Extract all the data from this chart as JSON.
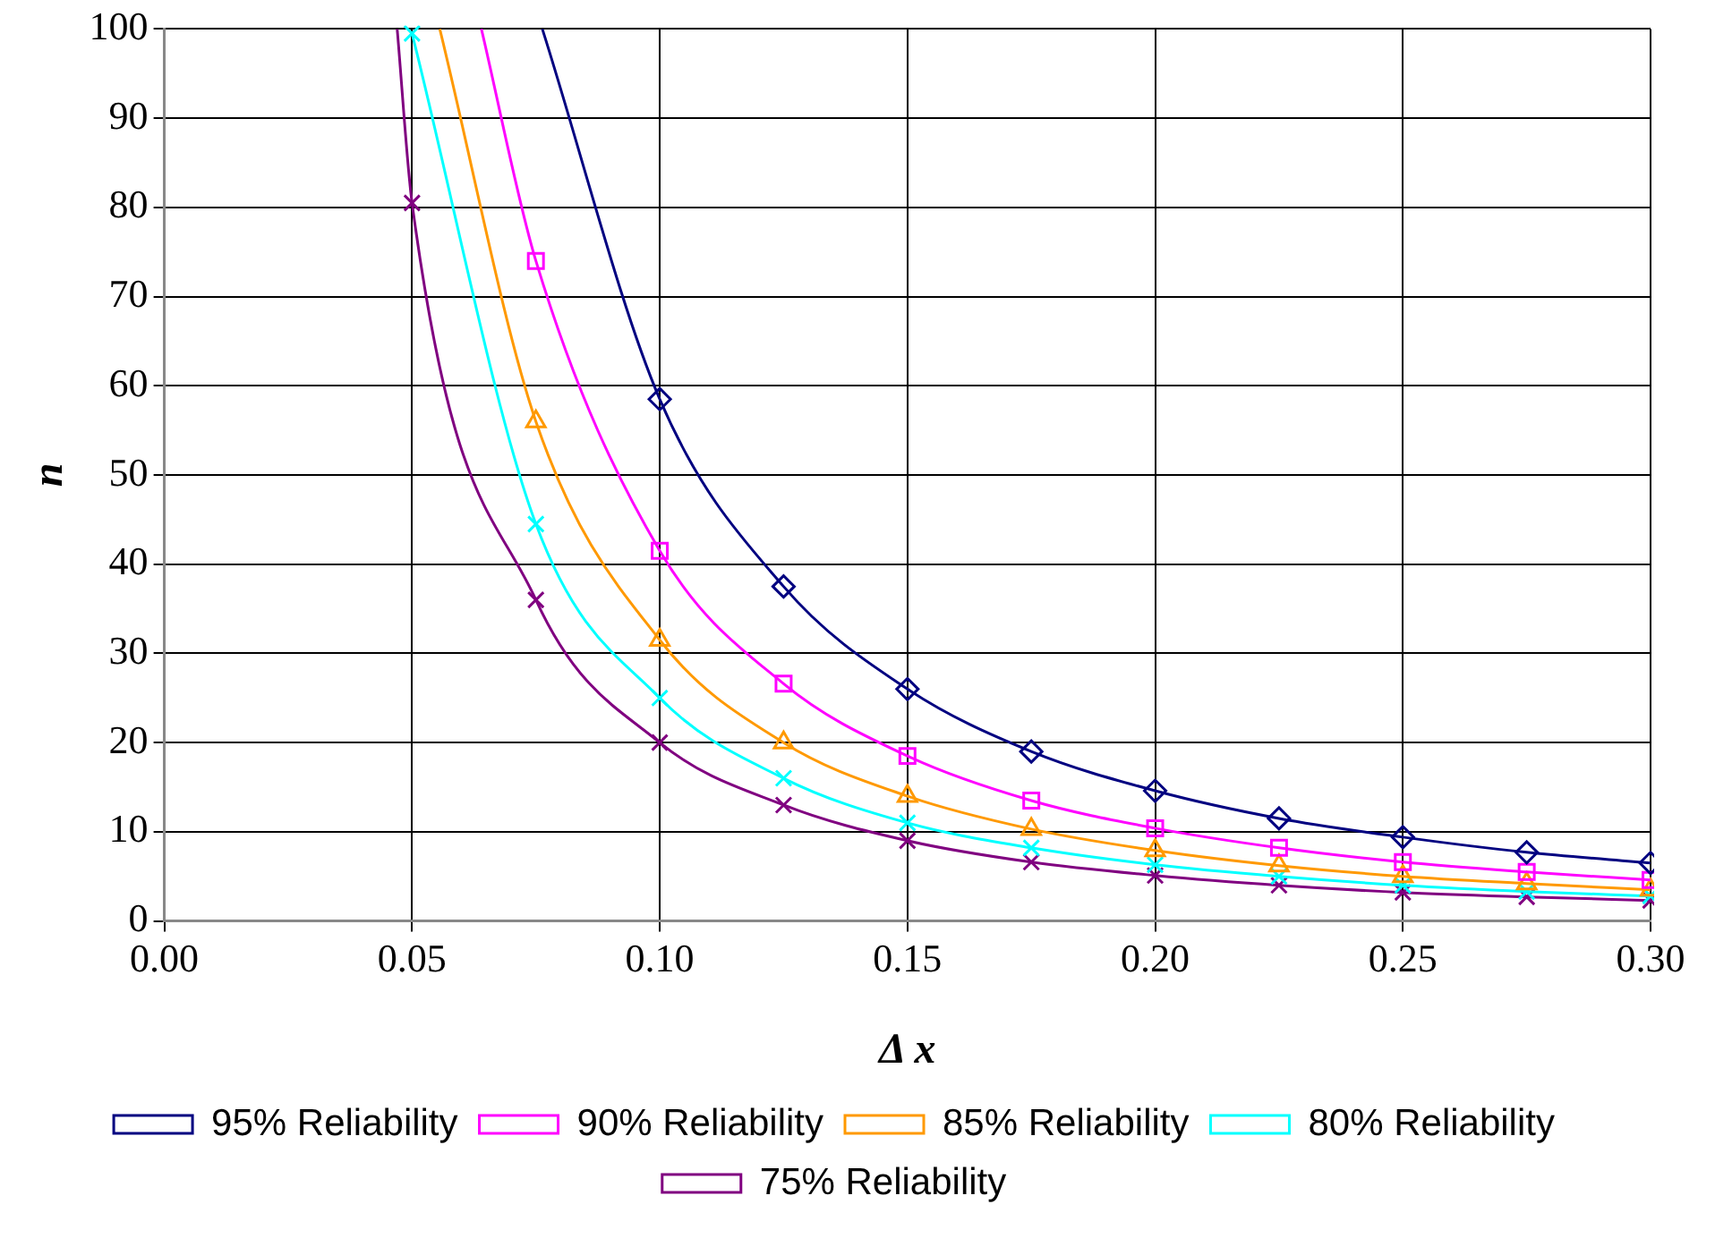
{
  "chart_data": {
    "type": "line",
    "xlabel": "Δ x",
    "ylabel": "n",
    "xlim": [
      0,
      0.3
    ],
    "ylim": [
      0,
      100
    ],
    "xticks": [
      {
        "value": 0,
        "label": "0.00"
      },
      {
        "value": 0.05,
        "label": "0.05"
      },
      {
        "value": 0.1,
        "label": "0.10"
      },
      {
        "value": 0.15,
        "label": "0.15"
      },
      {
        "value": 0.2,
        "label": "0.20"
      },
      {
        "value": 0.25,
        "label": "0.25"
      },
      {
        "value": 0.3,
        "label": "0.30"
      }
    ],
    "yticks": [
      0,
      10,
      20,
      30,
      40,
      50,
      60,
      70,
      80,
      90,
      100
    ],
    "grid": true,
    "legend": "bottom",
    "line_style": "solid",
    "series": [
      {
        "name": "95% Reliability",
        "color": "#000080",
        "marker": "diamond",
        "x": [
          0.0763,
          0.1,
          0.125,
          0.15,
          0.175,
          0.2,
          0.225,
          0.25,
          0.275,
          0.3
        ],
        "values": [
          100,
          58.5,
          37.5,
          26,
          19,
          14.6,
          11.5,
          9.4,
          7.7,
          6.5
        ]
      },
      {
        "name": "90% Reliability",
        "color": "#ff00ff",
        "marker": "square",
        "x": [
          0.064,
          0.075,
          0.1,
          0.125,
          0.15,
          0.175,
          0.2,
          0.225,
          0.25,
          0.275,
          0.3
        ],
        "values": [
          100,
          74,
          41.5,
          26.6,
          18.5,
          13.5,
          10.4,
          8.2,
          6.6,
          5.5,
          4.6
        ]
      },
      {
        "name": "85% Reliability",
        "color": "#ff9900",
        "marker": "triangle",
        "x": [
          0.0556,
          0.075,
          0.1,
          0.125,
          0.15,
          0.175,
          0.2,
          0.225,
          0.25,
          0.275,
          0.3
        ],
        "values": [
          100,
          56,
          31.5,
          20,
          14,
          10.3,
          7.9,
          6.2,
          5,
          4.2,
          3.5
        ]
      },
      {
        "name": "80% Reliability",
        "color": "#00ffff",
        "marker": "cross",
        "x": [
          0.05,
          0.075,
          0.1,
          0.125,
          0.15,
          0.175,
          0.2,
          0.225,
          0.25,
          0.275,
          0.3
        ],
        "values": [
          99.5,
          44.5,
          25,
          16,
          11,
          8.2,
          6.3,
          5,
          4,
          3.3,
          2.8
        ]
      },
      {
        "name": "75% Reliability",
        "color": "#800080",
        "marker": "cross",
        "x": [
          0.047,
          0.05,
          0.075,
          0.1,
          0.125,
          0.15,
          0.175,
          0.2,
          0.225,
          0.25,
          0.275,
          0.3
        ],
        "values": [
          100,
          80.5,
          36,
          20,
          13,
          9,
          6.6,
          5.1,
          4,
          3.2,
          2.7,
          2.3
        ]
      }
    ]
  }
}
